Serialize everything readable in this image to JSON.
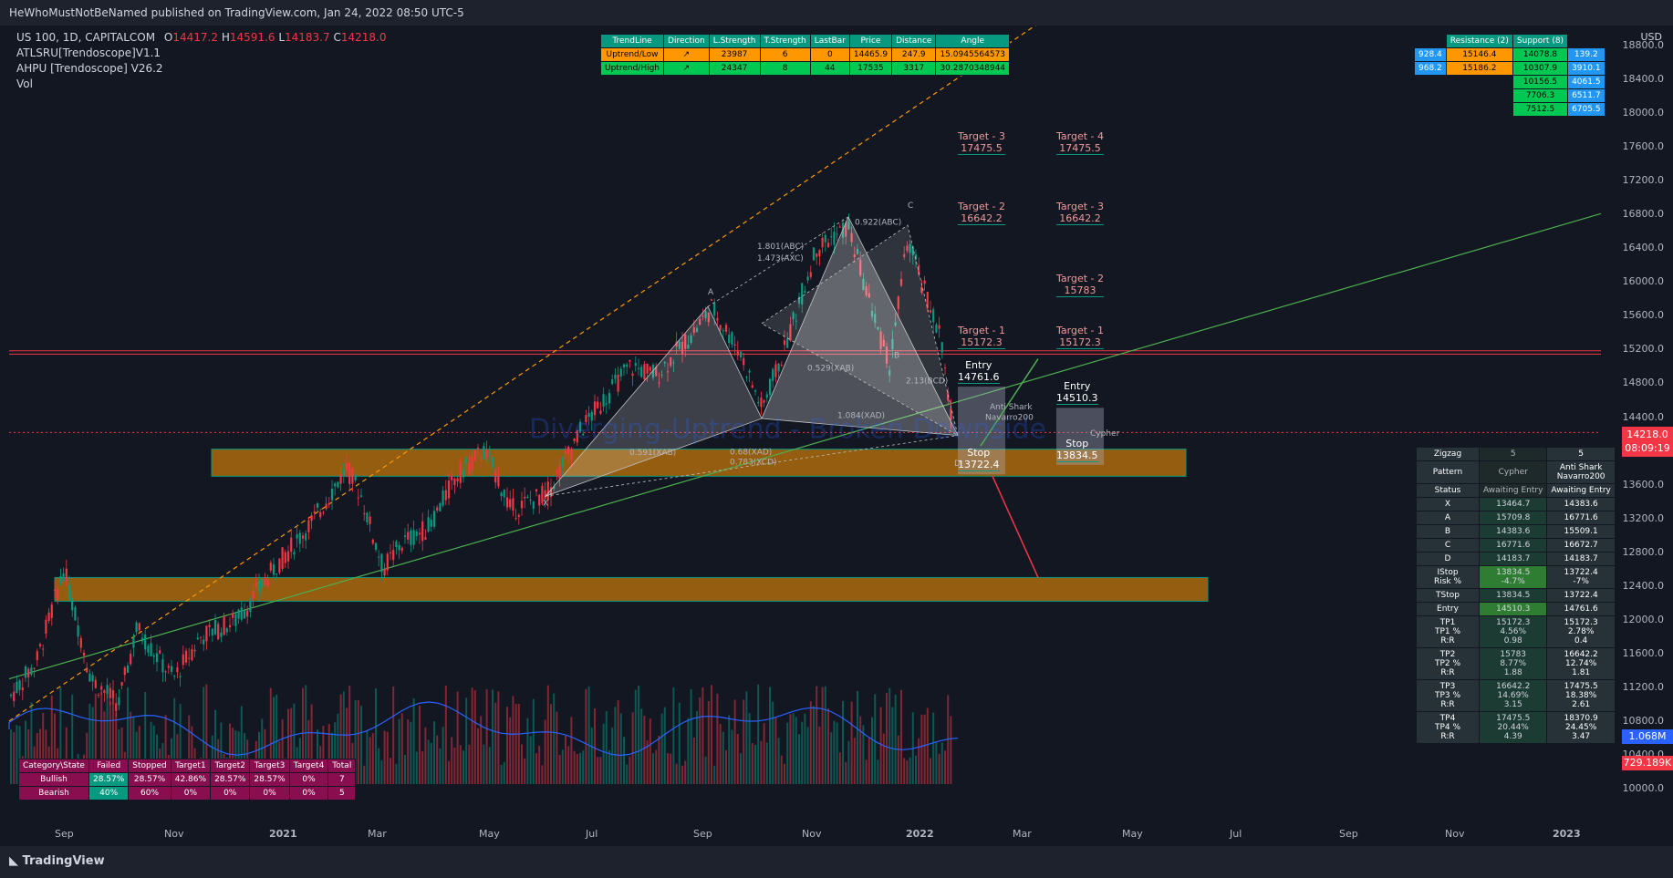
{
  "header": {
    "publisher": "HeWhoMustNotBeNamed published on TradingView.com, Jan 24, 2022 08:50 UTC-5"
  },
  "symbol": {
    "name": "US 100, 1D, CAPITALCOM",
    "o_label": "O",
    "o": "14417.2",
    "h_label": "H",
    "h": "14591.6",
    "l_label": "L",
    "l": "14183.7",
    "c_label": "C",
    "c": "14218.0"
  },
  "indicators": [
    "ATLSRU[Trendoscope]V1.1",
    "AHPU [Trendoscope] V26.2",
    "Vol"
  ],
  "currency": "USD",
  "watermark": "Diverging-Uptrend - Broken Downside",
  "trend_table": {
    "headers": [
      "TrendLine",
      "Direction",
      "L.Strength",
      "T.Strength",
      "LastBar",
      "Price",
      "Distance",
      "Angle"
    ],
    "rows": [
      [
        "Uptrend/Low",
        "↗",
        "23987",
        "6",
        "0",
        "14465.9",
        "247.9",
        "15.0945564573"
      ],
      [
        "Uptrend/High",
        "↗",
        "24347",
        "8",
        "44",
        "17535",
        "3317",
        "30.2870348944"
      ]
    ]
  },
  "sr_table": {
    "headers": [
      "Resistance (2)",
      "Support (8)"
    ],
    "res": [
      [
        "928.4",
        "15146.4"
      ],
      [
        "968.2",
        "15186.2"
      ]
    ],
    "sup": [
      [
        "14078.8",
        "139.2"
      ],
      [
        "10307.9",
        "3910.1"
      ],
      [
        "10156.5",
        "4061.5"
      ],
      [
        "7706.3",
        "6511.7"
      ],
      [
        "7512.5",
        "6705.5"
      ]
    ]
  },
  "stats_table": {
    "headers": [
      "Category\\State",
      "Failed",
      "Stopped",
      "Target1",
      "Target2",
      "Target3",
      "Target4",
      "Total"
    ],
    "rows": [
      [
        "Bullish",
        "28.57%",
        "28.57%",
        "42.86%",
        "28.57%",
        "28.57%",
        "0%",
        "7"
      ],
      [
        "Bearish",
        "40%",
        "60%",
        "0%",
        "0%",
        "0%",
        "0%",
        "5"
      ]
    ]
  },
  "zigzag_table": {
    "rows": [
      [
        "Zigzag",
        "5",
        "5"
      ],
      [
        "Pattern",
        "Cypher",
        "Anti Shark\nNavarro200"
      ],
      [
        "Status",
        "Awaiting Entry",
        "Awaiting Entry"
      ],
      [
        "X",
        "13464.7",
        "14383.6"
      ],
      [
        "A",
        "15709.8",
        "16771.6"
      ],
      [
        "B",
        "14383.6",
        "15509.1"
      ],
      [
        "C",
        "16771.6",
        "16672.7"
      ],
      [
        "D",
        "14183.7",
        "14183.7"
      ],
      [
        "IStop\nRisk %",
        "13834.5\n-4.7%",
        "13722.4\n-7%"
      ],
      [
        "TStop",
        "13834.5",
        "13722.4"
      ],
      [
        "Entry",
        "14510.3",
        "14761.6"
      ],
      [
        "TP1\nTP1 %\nR:R",
        "15172.3\n4.56%\n0.98",
        "15172.3\n2.78%\n0.4"
      ],
      [
        "TP2\nTP2 %\nR:R",
        "15783\n8.77%\n1.88",
        "16642.2\n12.74%\n1.81"
      ],
      [
        "TP3\nTP3 %\nR:R",
        "16642.2\n14.69%\n3.15",
        "17475.5\n18.38%\n2.61"
      ],
      [
        "TP4\nTP4 %\nR:R",
        "17475.5\n20.44%\n4.39",
        "18370.9\n24.45%\n3.47"
      ]
    ]
  },
  "targets_left": [
    {
      "label": "Target - 3",
      "value": "17475.5"
    },
    {
      "label": "Target - 2",
      "value": "16642.2"
    },
    {
      "label": "Target - 1",
      "value": "15172.3"
    },
    {
      "label": "Entry",
      "value": "14761.6"
    },
    {
      "label": "Stop",
      "value": "13722.4"
    }
  ],
  "targets_right": [
    {
      "label": "Target - 4",
      "value": "17475.5"
    },
    {
      "label": "Target - 3",
      "value": "16642.2"
    },
    {
      "label": "Target - 2",
      "value": "15783"
    },
    {
      "label": "Target - 1",
      "value": "15172.3"
    },
    {
      "label": "Entry",
      "value": "14510.3"
    },
    {
      "label": "Stop",
      "value": "13834.5"
    }
  ],
  "pattern_labels": {
    "x": "X",
    "a": "A",
    "b": "B",
    "c": "C",
    "d": "D",
    "r1": "1.801(ABC)",
    "r2": "1.473(AXC)",
    "r3": "0.922(ABC)",
    "r4": "0.529(XAB)",
    "r5": "2.13(BCD)",
    "r6": "1.084(XAD)",
    "r7": "0.591(XAB)",
    "r8": "0.68(XAD)",
    "r9": "0.783(XCD)",
    "anti": "Anti Shark\nNavarro200",
    "cypher": "Cypher"
  },
  "price_tags": {
    "last": "14218.0",
    "countdown": "08:09:19",
    "vol1": "1.068M",
    "vol2": "729.189K"
  },
  "chart_data": {
    "type": "candlestick",
    "y_ticks": [
      "18800.0",
      "18400.0",
      "18000.0",
      "17600.0",
      "17200.0",
      "16800.0",
      "16400.0",
      "16000.0",
      "15600.0",
      "15200.0",
      "14800.0",
      "14400.0",
      "14000.0",
      "13600.0",
      "13200.0",
      "12800.0",
      "12400.0",
      "12000.0",
      "11600.0",
      "11200.0",
      "10800.0",
      "10400.0",
      "10000.0"
    ],
    "x_ticks": [
      "Sep",
      "Nov",
      "2021",
      "Mar",
      "May",
      "Jul",
      "Sep",
      "Nov",
      "2022",
      "Mar",
      "May",
      "Jul",
      "Sep",
      "Nov",
      "2023"
    ],
    "ylim": [
      9800,
      19000
    ],
    "last_close": 14218.0,
    "pattern_points": {
      "X": 13464.7,
      "A": 15709.8,
      "B": 14383.6,
      "C": 16771.6,
      "D": 14183.7
    },
    "volume_last": "1.068M",
    "volume_avg": "729.189K"
  },
  "footer": {
    "brand": "TradingView"
  }
}
